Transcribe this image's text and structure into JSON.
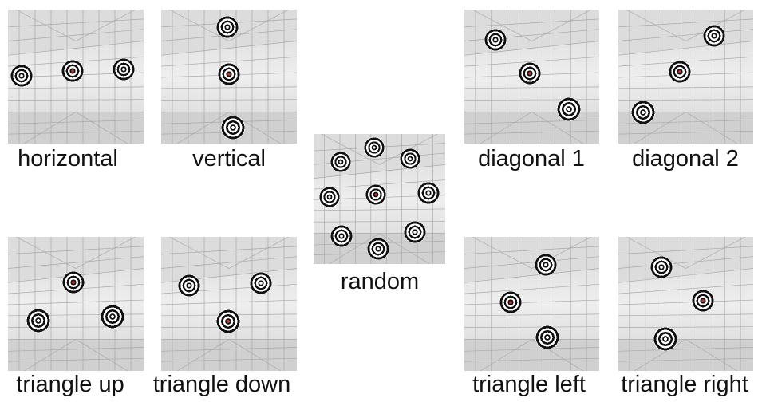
{
  "panels": [
    {
      "id": "horizontal",
      "label": "horizontal"
    },
    {
      "id": "vertical",
      "label": "vertical"
    },
    {
      "id": "diagonal1",
      "label": "diagonal 1"
    },
    {
      "id": "diagonal2",
      "label": "diagonal 2"
    },
    {
      "id": "random",
      "label": "random"
    },
    {
      "id": "triangle_up",
      "label": "triangle up"
    },
    {
      "id": "triangle_down",
      "label": "triangle down"
    },
    {
      "id": "triangle_left",
      "label": "triangle left"
    },
    {
      "id": "triangle_right",
      "label": "triangle right"
    }
  ],
  "colors": {
    "room_floor": "#cfcfcf",
    "room_wall": "#e6e6e6",
    "grid": "#a9a9a9",
    "target_center_highlight": "#c0392b"
  }
}
